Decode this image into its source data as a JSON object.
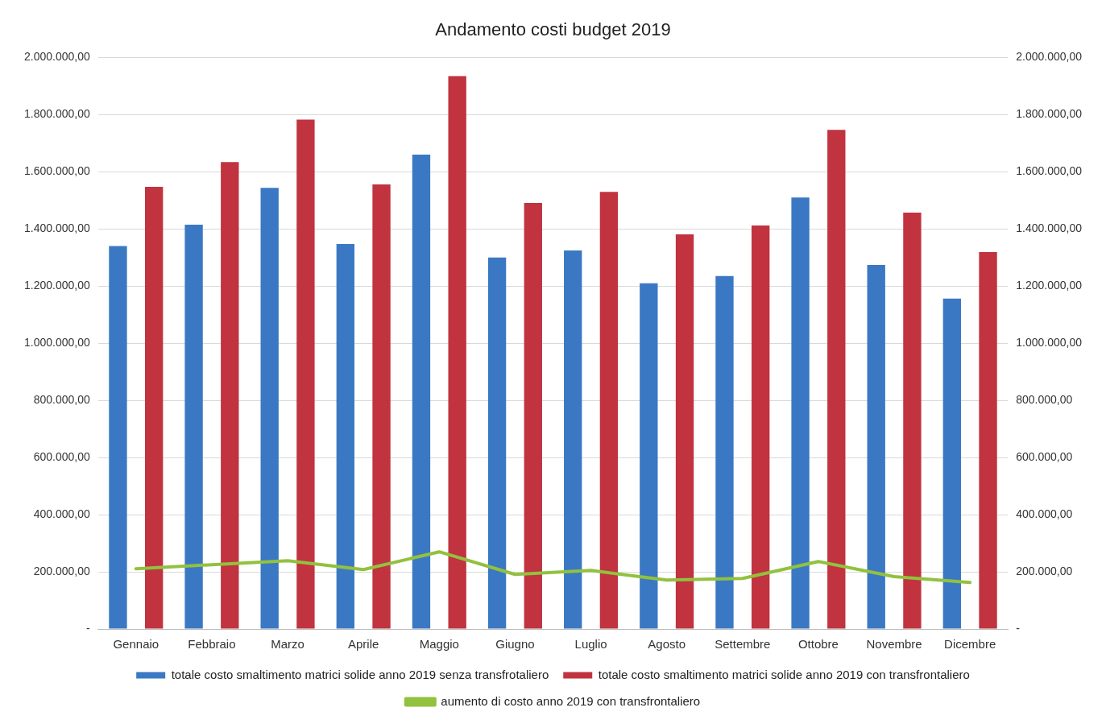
{
  "chart_data": {
    "type": "bar",
    "title": "Andamento costi budget 2019",
    "categories": [
      "Gennaio",
      "Febbraio",
      "Marzo",
      "Aprile",
      "Maggio",
      "Giugno",
      "Luglio",
      "Agosto",
      "Settembre",
      "Ottobre",
      "Novembre",
      "Dicembre"
    ],
    "series": [
      {
        "name": "totale costo smaltimento matrici solide anno 2019 senza transfrotaliero",
        "color": "#3b78c4",
        "values": [
          1340000,
          1415000,
          1544000,
          1347000,
          1660000,
          1300000,
          1325000,
          1210000,
          1235000,
          1510000,
          1274000,
          1156000
        ]
      },
      {
        "name": "totale costo smaltimento matrici solide anno 2019 con transfrontaliero",
        "color": "#c0333f",
        "values": [
          1547000,
          1634000,
          1783000,
          1556000,
          1935000,
          1491000,
          1530000,
          1381000,
          1412000,
          1747000,
          1457000,
          1319000
        ]
      },
      {
        "name": "aumento di costo anno 2019 con transfrontaliero",
        "color": "#92c13f",
        "type": "line",
        "axis": "y2",
        "marker": "none",
        "values": [
          211000,
          225000,
          239000,
          208000,
          270000,
          191000,
          205000,
          171000,
          177000,
          236000,
          183000,
          163000
        ]
      }
    ],
    "ylim": [
      0,
      2000000
    ],
    "yticks": [
      {
        "value": 0,
        "label": "-"
      },
      {
        "value": 200000,
        "label": "200.000,00"
      },
      {
        "value": 400000,
        "label": "400.000,00"
      },
      {
        "value": 600000,
        "label": "600.000,00"
      },
      {
        "value": 800000,
        "label": "800.000,00"
      },
      {
        "value": 1000000,
        "label": "1.000.000,00"
      },
      {
        "value": 1200000,
        "label": "1.200.000,00"
      },
      {
        "value": 1400000,
        "label": "1.400.000,00"
      },
      {
        "value": 1600000,
        "label": "1.600.000,00"
      },
      {
        "value": 1800000,
        "label": "1.800.000,00"
      },
      {
        "value": 2000000,
        "label": "2.000.000,00"
      }
    ],
    "y2lim": [
      0,
      2000000
    ],
    "y2ticks": [
      {
        "value": 0,
        "label": "-"
      },
      {
        "value": 200000,
        "label": "200.000,00"
      },
      {
        "value": 400000,
        "label": "400.000,00"
      },
      {
        "value": 600000,
        "label": "600.000,00"
      },
      {
        "value": 800000,
        "label": "800.000,00"
      },
      {
        "value": 1000000,
        "label": "1.000.000,00"
      },
      {
        "value": 1200000,
        "label": "1.200.000,00"
      },
      {
        "value": 1400000,
        "label": "1.400.000,00"
      },
      {
        "value": 1600000,
        "label": "1.600.000,00"
      },
      {
        "value": 1800000,
        "label": "1.800.000,00"
      },
      {
        "value": 2000000,
        "label": "2.000.000,00"
      }
    ],
    "grid": "y",
    "legend": "bottom"
  }
}
